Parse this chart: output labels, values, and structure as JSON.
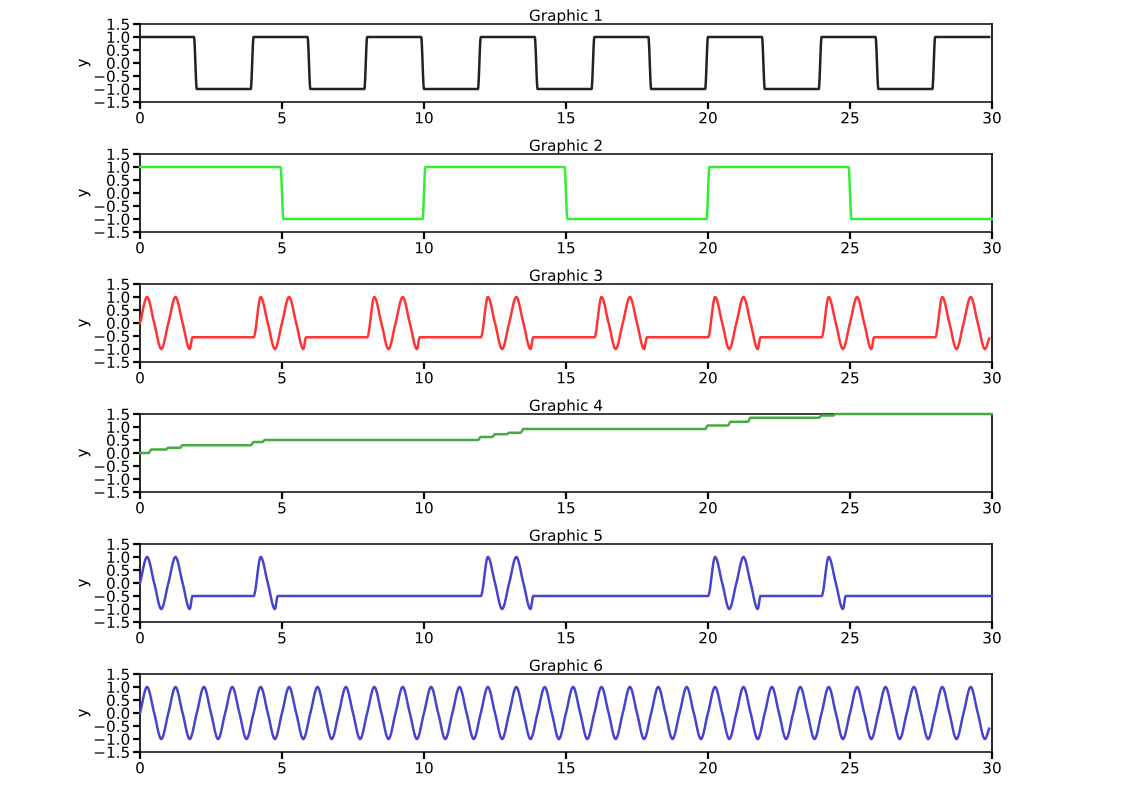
{
  "chart_data": [
    {
      "type": "line",
      "title": "Graphic 1",
      "ylabel": "y",
      "xlim": [
        0,
        30
      ],
      "ylim": [
        -1.5,
        1.5
      ],
      "xticks": [
        0,
        5,
        10,
        15,
        20,
        25,
        30
      ],
      "yticks": [
        {
          "value": -1.5,
          "label": "−1.5"
        },
        {
          "value": -1,
          "label": "−1.0"
        },
        {
          "value": -0.5,
          "label": "−0.5"
        },
        {
          "value": 0,
          "label": "0.0"
        },
        {
          "value": 0.5,
          "label": "0.5"
        },
        {
          "value": 1,
          "label": "1.0"
        },
        {
          "value": 1.5,
          "label": "1.5"
        }
      ],
      "x": [
        0,
        1.9,
        2,
        3.9,
        4,
        5.9,
        6,
        7.9,
        8,
        9.9,
        10,
        11.9,
        12,
        13.9,
        14,
        15.9,
        16,
        17.9,
        18,
        19.9,
        20,
        21.9,
        22,
        23.9,
        24,
        25.9,
        26,
        27.9,
        28,
        29.9
      ],
      "series": [
        {
          "color": "#222222",
          "values": [
            1,
            1,
            -1,
            -1,
            1,
            1,
            -1,
            -1,
            1,
            1,
            -1,
            -1,
            1,
            1,
            -1,
            -1,
            1,
            1,
            -1,
            -1,
            1,
            1,
            -1,
            -1,
            1,
            1,
            -1,
            -1,
            1,
            1
          ]
        }
      ]
    },
    {
      "type": "line",
      "title": "Graphic 2",
      "ylabel": "y",
      "xlim": [
        0,
        30
      ],
      "ylim": [
        -1.5,
        1.5
      ],
      "xticks": [
        0,
        5,
        10,
        15,
        20,
        25,
        30
      ],
      "yticks": [
        {
          "value": -1.5,
          "label": "−1.5"
        },
        {
          "value": -1,
          "label": "−1.0"
        },
        {
          "value": -0.5,
          "label": "−0.5"
        },
        {
          "value": 0,
          "label": "0.0"
        },
        {
          "value": 0.5,
          "label": "0.5"
        },
        {
          "value": 1,
          "label": "1.0"
        },
        {
          "value": 1.5,
          "label": "1.5"
        }
      ],
      "x": [
        0,
        4.95,
        5.05,
        9.95,
        10.05,
        14.95,
        15.05,
        19.95,
        20.05,
        24.95,
        25.05,
        30
      ],
      "series": [
        {
          "color": "#33ee33",
          "values": [
            1,
            1,
            -1,
            -1,
            1,
            1,
            -1,
            -1,
            1,
            1,
            -1,
            -1
          ]
        }
      ]
    },
    {
      "type": "line",
      "title": "Graphic 3",
      "ylabel": "y",
      "xlim": [
        0,
        30
      ],
      "ylim": [
        -1.5,
        1.5
      ],
      "xticks": [
        0,
        5,
        10,
        15,
        20,
        25,
        30
      ],
      "yticks": [
        {
          "value": -1.5,
          "label": "−1.5"
        },
        {
          "value": -1,
          "label": "−1.0"
        },
        {
          "value": -0.5,
          "label": "−0.5"
        },
        {
          "value": 0,
          "label": "0.0"
        },
        {
          "value": 0.5,
          "label": "0.5"
        },
        {
          "value": 1,
          "label": "1.0"
        },
        {
          "value": 1.5,
          "label": "1.5"
        }
      ],
      "x": [
        0,
        0.25,
        0.5,
        0.75,
        1,
        1.25,
        1.5,
        1.75,
        1.85,
        4,
        4.25,
        4.5,
        4.75,
        5,
        5.25,
        5.5,
        5.75,
        5.85,
        8,
        8.25,
        8.5,
        8.75,
        9,
        9.25,
        9.5,
        9.75,
        9.85,
        12,
        12.25,
        12.5,
        12.75,
        13,
        13.25,
        13.5,
        13.75,
        13.85,
        16,
        16.25,
        16.5,
        16.75,
        17,
        17.25,
        17.5,
        17.75,
        17.85,
        20,
        20.25,
        20.5,
        20.75,
        21,
        21.25,
        21.5,
        21.75,
        21.85,
        24,
        24.25,
        24.5,
        24.75,
        25,
        25.25,
        25.5,
        25.75,
        25.85,
        28,
        28.25,
        28.5,
        28.75,
        29,
        29.25,
        29.5,
        29.75,
        29.9
      ],
      "series": [
        {
          "color": "#ff3333",
          "values": [
            0,
            1,
            0,
            -1,
            0,
            1,
            0,
            -1,
            -0.55,
            -0.55,
            1,
            0,
            -1,
            0,
            1,
            0,
            -1,
            -0.55,
            -0.55,
            1,
            0,
            -1,
            0,
            1,
            0,
            -1,
            -0.55,
            -0.55,
            1,
            0,
            -1,
            0,
            1,
            0,
            -1,
            -0.55,
            -0.55,
            1,
            0,
            -1,
            0,
            1,
            0,
            -1,
            -0.55,
            -0.55,
            1,
            0,
            -1,
            0,
            1,
            0,
            -1,
            -0.55,
            -0.55,
            1,
            0,
            -1,
            0,
            1,
            0,
            -1,
            -0.55,
            -0.55,
            1,
            0,
            -1,
            0,
            1,
            0,
            -1,
            -0.6
          ]
        }
      ]
    },
    {
      "type": "line",
      "title": "Graphic 4",
      "ylabel": "y",
      "xlim": [
        0,
        30
      ],
      "ylim": [
        -1.5,
        1.5
      ],
      "xticks": [
        0,
        5,
        10,
        15,
        20,
        25,
        30
      ],
      "yticks": [
        {
          "value": -1.5,
          "label": "−1.5"
        },
        {
          "value": -1,
          "label": "−1.0"
        },
        {
          "value": -0.5,
          "label": "−0.5"
        },
        {
          "value": 0,
          "label": "0.0"
        },
        {
          "value": 0.5,
          "label": "0.5"
        },
        {
          "value": 1,
          "label": "1.0"
        },
        {
          "value": 1.5,
          "label": "1.5"
        }
      ],
      "x": [
        0,
        0.3,
        0.4,
        0.9,
        1.0,
        1.4,
        1.5,
        3.9,
        4,
        4.3,
        4.4,
        11.9,
        12,
        12.4,
        12.5,
        12.9,
        13,
        13.4,
        13.5,
        19.9,
        20,
        20.7,
        20.8,
        21.4,
        21.5,
        23.9,
        24,
        24.4,
        24.5,
        30
      ],
      "series": [
        {
          "color": "#44aa44",
          "values": [
            0,
            0,
            0.13,
            0.13,
            0.2,
            0.2,
            0.3,
            0.3,
            0.42,
            0.42,
            0.5,
            0.5,
            0.62,
            0.62,
            0.72,
            0.72,
            0.78,
            0.78,
            0.92,
            0.92,
            1.06,
            1.06,
            1.2,
            1.2,
            1.36,
            1.36,
            1.44,
            1.44,
            1.5,
            1.5
          ]
        }
      ]
    },
    {
      "type": "line",
      "title": "Graphic 5",
      "ylabel": "y",
      "xlim": [
        0,
        30
      ],
      "ylim": [
        -1.5,
        1.5
      ],
      "xticks": [
        0,
        5,
        10,
        15,
        20,
        25,
        30
      ],
      "yticks": [
        {
          "value": -1.5,
          "label": "−1.5"
        },
        {
          "value": -1,
          "label": "−1.0"
        },
        {
          "value": -0.5,
          "label": "−0.5"
        },
        {
          "value": 0,
          "label": "0.0"
        },
        {
          "value": 0.5,
          "label": "0.5"
        },
        {
          "value": 1,
          "label": "1.0"
        },
        {
          "value": 1.5,
          "label": "1.5"
        }
      ],
      "x": [
        0,
        0.25,
        0.5,
        0.75,
        1,
        1.25,
        1.5,
        1.75,
        1.85,
        4,
        4.25,
        4.5,
        4.75,
        4.85,
        12,
        12.25,
        12.5,
        12.75,
        13,
        13.25,
        13.5,
        13.75,
        13.85,
        20,
        20.25,
        20.5,
        20.75,
        21,
        21.25,
        21.5,
        21.75,
        21.85,
        24,
        24.25,
        24.5,
        24.75,
        24.85,
        30
      ],
      "series": [
        {
          "color": "#4444cc",
          "values": [
            0,
            1,
            0,
            -1,
            0,
            1,
            0,
            -1,
            -0.5,
            -0.5,
            1,
            0,
            -1,
            -0.5,
            -0.5,
            1,
            0,
            -1,
            0,
            1,
            0,
            -1,
            -0.5,
            -0.5,
            1,
            0,
            -1,
            0,
            1,
            0,
            -1,
            -0.5,
            -0.5,
            1,
            0,
            -1,
            -0.5,
            -0.5
          ]
        }
      ]
    },
    {
      "type": "line",
      "title": "Graphic 6",
      "ylabel": "y",
      "xlim": [
        0,
        30
      ],
      "ylim": [
        -1.5,
        1.5
      ],
      "xticks": [
        0,
        5,
        10,
        15,
        20,
        25,
        30
      ],
      "yticks": [
        {
          "value": -1.5,
          "label": "−1.5"
        },
        {
          "value": -1,
          "label": "−1.0"
        },
        {
          "value": -0.5,
          "label": "−0.5"
        },
        {
          "value": 0,
          "label": "0.0"
        },
        {
          "value": 0.5,
          "label": "0.5"
        },
        {
          "value": 1,
          "label": "1.0"
        },
        {
          "value": 1.5,
          "label": "1.5"
        }
      ],
      "x": [
        0,
        0.25,
        0.5,
        0.75,
        1,
        1.25,
        1.5,
        1.75,
        2,
        2.25,
        2.5,
        2.75,
        3,
        3.25,
        3.5,
        3.75,
        4,
        4.25,
        4.5,
        4.75,
        5,
        5.25,
        5.5,
        5.75,
        6,
        6.25,
        6.5,
        6.75,
        7,
        7.25,
        7.5,
        7.75,
        8,
        8.25,
        8.5,
        8.75,
        9,
        9.25,
        9.5,
        9.75,
        10,
        10.25,
        10.5,
        10.75,
        11,
        11.25,
        11.5,
        11.75,
        12,
        12.25,
        12.5,
        12.75,
        13,
        13.25,
        13.5,
        13.75,
        14,
        14.25,
        14.5,
        14.75,
        15,
        15.25,
        15.5,
        15.75,
        16,
        16.25,
        16.5,
        16.75,
        17,
        17.25,
        17.5,
        17.75,
        18,
        18.25,
        18.5,
        18.75,
        19,
        19.25,
        19.5,
        19.75,
        20,
        20.25,
        20.5,
        20.75,
        21,
        21.25,
        21.5,
        21.75,
        22,
        22.25,
        22.5,
        22.75,
        23,
        23.25,
        23.5,
        23.75,
        24,
        24.25,
        24.5,
        24.75,
        25,
        25.25,
        25.5,
        25.75,
        26,
        26.25,
        26.5,
        26.75,
        27,
        27.25,
        27.5,
        27.75,
        28,
        28.25,
        28.5,
        28.75,
        29,
        29.25,
        29.5,
        29.75,
        29.9
      ],
      "series": [
        {
          "color": "#4444cc",
          "values": [
            0,
            1,
            0,
            -1,
            0,
            1,
            0,
            -1,
            0,
            1,
            0,
            -1,
            0,
            1,
            0,
            -1,
            0,
            1,
            0,
            -1,
            0,
            1,
            0,
            -1,
            0,
            1,
            0,
            -1,
            0,
            1,
            0,
            -1,
            0,
            1,
            0,
            -1,
            0,
            1,
            0,
            -1,
            0,
            1,
            0,
            -1,
            0,
            1,
            0,
            -1,
            0,
            1,
            0,
            -1,
            0,
            1,
            0,
            -1,
            0,
            1,
            0,
            -1,
            0,
            1,
            0,
            -1,
            0,
            1,
            0,
            -1,
            0,
            1,
            0,
            -1,
            0,
            1,
            0,
            -1,
            0,
            1,
            0,
            -1,
            0,
            1,
            0,
            -1,
            0,
            1,
            0,
            -1,
            0,
            1,
            0,
            -1,
            0,
            1,
            0,
            -1,
            0,
            1,
            0,
            -1,
            0,
            1,
            0,
            -1,
            0,
            1,
            0,
            -1,
            0,
            1,
            0,
            -1,
            0,
            1,
            0,
            -1,
            0,
            1,
            0,
            -1,
            -0.6
          ]
        }
      ]
    }
  ]
}
